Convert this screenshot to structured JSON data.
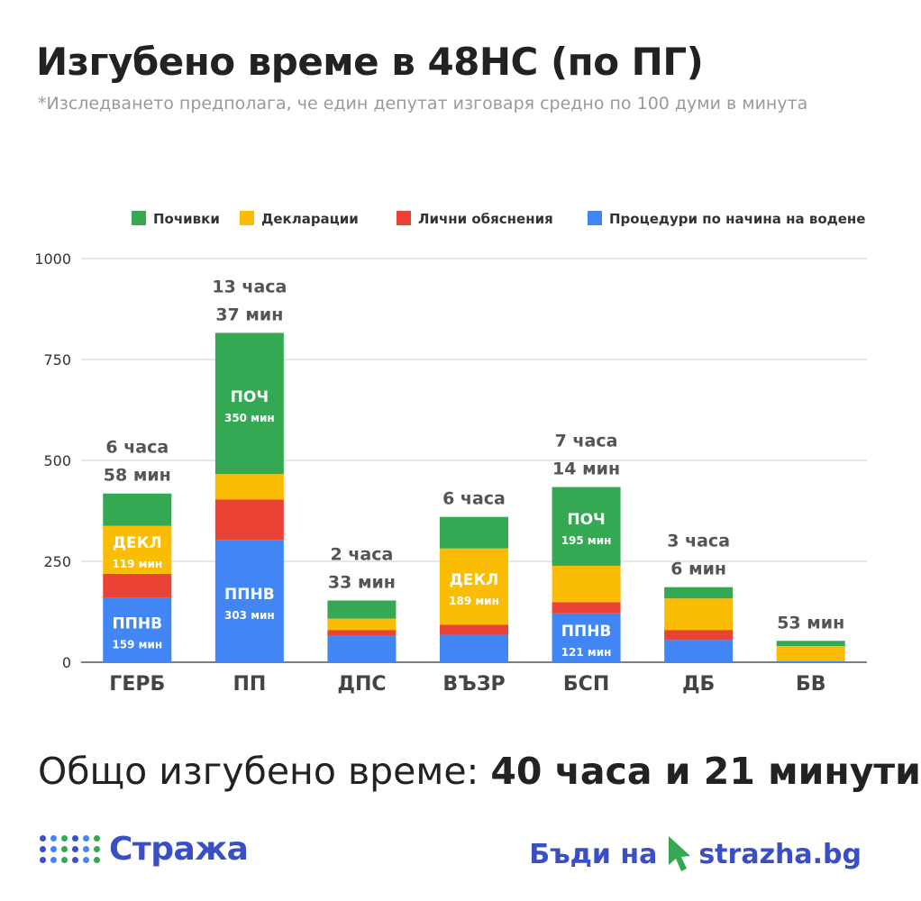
{
  "header": {
    "title": "Изгубено време в 48НС (по ПГ)",
    "subtitle": "*Изследването предполага, че един депутат изговаря средно по 100 думи в минута"
  },
  "chart_data": {
    "type": "bar",
    "stacked": true,
    "categories": [
      "ГЕРБ",
      "ПП",
      "ДПС",
      "ВЪЗР",
      "БСП",
      "ДБ",
      "БВ"
    ],
    "series": [
      {
        "name": "Процедури по начина на водене",
        "color": "#4285f4",
        "values": [
          159,
          303,
          65,
          68,
          121,
          55,
          3
        ]
      },
      {
        "name": "Лични обяснения",
        "color": "#ea4335",
        "values": [
          60,
          100,
          15,
          25,
          28,
          25,
          0
        ]
      },
      {
        "name": "Декларации",
        "color": "#fbbc04",
        "values": [
          119,
          63,
          28,
          189,
          90,
          78,
          37
        ]
      },
      {
        "name": "Почивки",
        "color": "#34a853",
        "values": [
          80,
          350,
          45,
          78,
          195,
          28,
          13
        ]
      }
    ],
    "legend_order": [
      3,
      2,
      1,
      0
    ],
    "legend_position": "top-right",
    "ylim": [
      0,
      1000
    ],
    "yticks": [
      0,
      250,
      500,
      750,
      1000
    ],
    "grid": true,
    "totals_labels": [
      [
        "6 часа",
        "58 мин"
      ],
      [
        "13 часа",
        "37 мин"
      ],
      [
        "2 часа",
        "33 мин"
      ],
      [
        "6 часа"
      ],
      [
        "7 часа",
        "14 мин"
      ],
      [
        "3 часа",
        "6 мин"
      ],
      [
        "53 мин"
      ]
    ],
    "segment_labels": [
      {
        "category": 0,
        "series": 0,
        "name": "ППНВ",
        "value": "159 мин"
      },
      {
        "category": 0,
        "series": 2,
        "name": "ДЕКЛ",
        "value": "119 мин"
      },
      {
        "category": 1,
        "series": 0,
        "name": "ППНВ",
        "value": "303 мин"
      },
      {
        "category": 1,
        "series": 3,
        "name": "ПОЧ",
        "value": "350 мин"
      },
      {
        "category": 3,
        "series": 2,
        "name": "ДЕКЛ",
        "value": "189 мин"
      },
      {
        "category": 4,
        "series": 0,
        "name": "ППНВ",
        "value": "121 мин"
      },
      {
        "category": 4,
        "series": 3,
        "name": "ПОЧ",
        "value": "195 мин"
      }
    ]
  },
  "footer": {
    "total_prefix": "Общо изгубено време:",
    "total_value": "40 часа и 21 минути",
    "brand_name": "Стража",
    "cta_text": "Бъди на",
    "cta_domain": "strazha",
    "cta_tld": ".bg",
    "dot_colors": [
      "#3b4fc4",
      "#4285f4",
      "#34a853"
    ]
  }
}
